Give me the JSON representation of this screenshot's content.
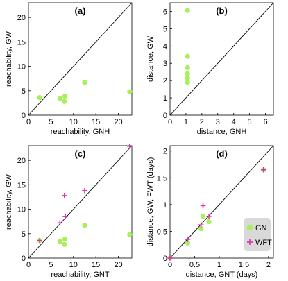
{
  "colors": {
    "gn": "#a8f05a",
    "wft": "#dd33aa",
    "legend_bg": "#d9d9d9"
  },
  "chart_data": [
    {
      "type": "scatter",
      "label": "(a)",
      "xlabel": "reachability, GNH",
      "ylabel": "reachability, GW",
      "xlim": [
        0,
        23
      ],
      "ylim": [
        0,
        23
      ],
      "xticks": [
        0,
        5,
        10,
        15,
        20
      ],
      "yticks": [
        0,
        5,
        10,
        15,
        20
      ],
      "diagonal": true,
      "series": [
        {
          "marker": "circle",
          "color_key": "gn",
          "points": [
            [
              2.5,
              3.6
            ],
            [
              7,
              3.4
            ],
            [
              8,
              2.8
            ],
            [
              8.1,
              3.9
            ],
            [
              12.5,
              6.7
            ],
            [
              22.5,
              4.8
            ]
          ]
        }
      ]
    },
    {
      "type": "scatter",
      "label": "(b)",
      "xlabel": "distance, GNH",
      "ylabel": "distance, GW",
      "xlim": [
        0,
        6.5
      ],
      "ylim": [
        0,
        6.5
      ],
      "xticks": [
        0,
        1,
        2,
        3,
        4,
        5,
        6
      ],
      "yticks": [
        0,
        1,
        2,
        3,
        4,
        5,
        6
      ],
      "diagonal": true,
      "series": [
        {
          "marker": "circle",
          "color_key": "gn",
          "points": [
            [
              1.1,
              6.05
            ],
            [
              1.1,
              3.4
            ],
            [
              1.1,
              2.75
            ],
            [
              1.1,
              2.4
            ],
            [
              1.1,
              2.15
            ],
            [
              1.1,
              1.9
            ]
          ]
        }
      ]
    },
    {
      "type": "scatter",
      "label": "(c)",
      "xlabel": "reachability, GNT",
      "ylabel": "reachability, GW",
      "xlim": [
        0,
        23
      ],
      "ylim": [
        0,
        23
      ],
      "xticks": [
        0,
        5,
        10,
        15,
        20
      ],
      "yticks": [
        0,
        5,
        10,
        15,
        20
      ],
      "diagonal": true,
      "series": [
        {
          "marker": "circle",
          "color_key": "gn",
          "points": [
            [
              2.5,
              3.6
            ],
            [
              7,
              3.4
            ],
            [
              8,
              2.8
            ],
            [
              8.1,
              3.9
            ],
            [
              12.5,
              6.7
            ],
            [
              22.5,
              4.8
            ]
          ]
        },
        {
          "marker": "plus",
          "color_key": "wft",
          "points": [
            [
              2.5,
              3.6
            ],
            [
              7,
              7.2
            ],
            [
              8,
              12.8
            ],
            [
              8.2,
              8.5
            ],
            [
              12.5,
              13.8
            ],
            [
              22.5,
              22.9
            ]
          ]
        }
      ]
    },
    {
      "type": "scatter",
      "label": "(d)",
      "xlabel": "distance, GNT (days)",
      "ylabel": "distance, GW, FWT (days)",
      "xlim": [
        0,
        2.1
      ],
      "ylim": [
        0,
        2.1
      ],
      "xticks": [
        0,
        0.5,
        1,
        1.5,
        2
      ],
      "yticks": [
        0,
        0.5,
        1,
        1.5,
        2
      ],
      "diagonal": true,
      "legend": {
        "position": "bottom-right",
        "entries": [
          {
            "name": "GN",
            "marker": "circle",
            "color_key": "gn"
          },
          {
            "name": "WFT",
            "marker": "plus",
            "color_key": "wft"
          }
        ]
      },
      "series": [
        {
          "marker": "circle",
          "color_key": "gn",
          "points": [
            [
              0,
              0
            ],
            [
              0.36,
              0.28
            ],
            [
              0.63,
              0.55
            ],
            [
              0.67,
              0.78
            ],
            [
              0.79,
              0.68
            ],
            [
              1.9,
              1.65
            ]
          ]
        },
        {
          "marker": "plus",
          "color_key": "wft",
          "points": [
            [
              0,
              0
            ],
            [
              0.36,
              0.35
            ],
            [
              0.63,
              0.62
            ],
            [
              0.67,
              0.98
            ],
            [
              0.79,
              0.78
            ],
            [
              1.9,
              1.65
            ]
          ]
        }
      ]
    }
  ]
}
